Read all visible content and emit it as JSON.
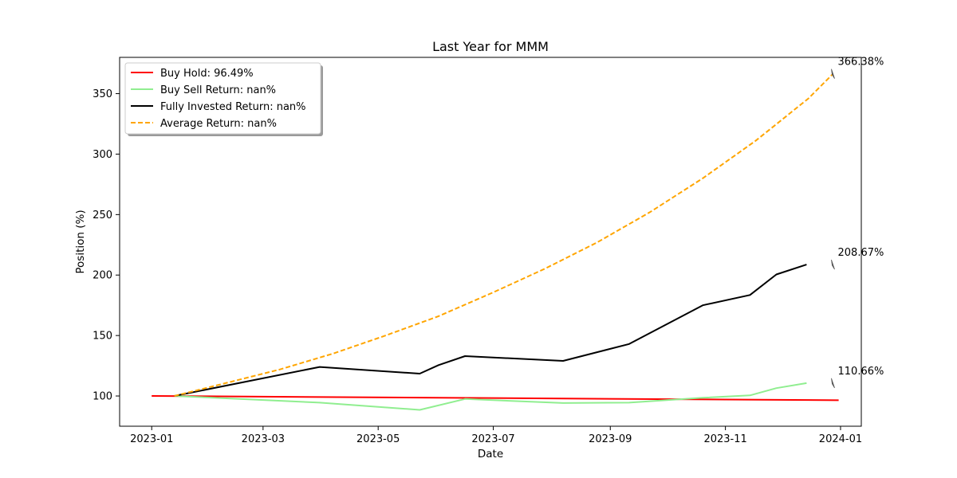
{
  "chart_data": {
    "type": "line",
    "title": "Last Year for MMM",
    "xlabel": "Date",
    "ylabel": "Position (%)",
    "xlim": [
      "2022-12-15",
      "2024-01-12"
    ],
    "ylim": [
      75,
      380
    ],
    "grid": false,
    "legend_position": "top-left",
    "x_ticks": [
      "2023-01",
      "2023-03",
      "2023-05",
      "2023-07",
      "2023-09",
      "2023-11",
      "2024-01"
    ],
    "y_ticks": [
      100,
      150,
      200,
      250,
      300,
      350
    ],
    "series": [
      {
        "name": "Buy Hold: 96.49%",
        "color": "#ff0000",
        "dash": "solid",
        "points": [
          {
            "x": "2023-01-01",
            "y": 100.0
          },
          {
            "x": "2023-12-31",
            "y": 96.49
          }
        ]
      },
      {
        "name": "Buy Sell Return: nan%",
        "color": "#90ee90",
        "dash": "solid",
        "points": [
          {
            "x": "2023-01-13",
            "y": 100.0
          },
          {
            "x": "2023-03-31",
            "y": 94.5
          },
          {
            "x": "2023-05-23",
            "y": 88.5
          },
          {
            "x": "2023-06-16",
            "y": 97.5
          },
          {
            "x": "2023-08-07",
            "y": 94.2
          },
          {
            "x": "2023-09-11",
            "y": 94.5
          },
          {
            "x": "2023-10-20",
            "y": 98.5
          },
          {
            "x": "2023-11-14",
            "y": 100.5
          },
          {
            "x": "2023-11-28",
            "y": 106.5
          },
          {
            "x": "2023-12-14",
            "y": 110.66
          }
        ]
      },
      {
        "name": "Fully Invested Return: nan%",
        "color": "#000000",
        "dash": "solid",
        "points": [
          {
            "x": "2023-01-13",
            "y": 100.0
          },
          {
            "x": "2023-03-31",
            "y": 124.0
          },
          {
            "x": "2023-05-23",
            "y": 118.5
          },
          {
            "x": "2023-06-02",
            "y": 125.5
          },
          {
            "x": "2023-06-16",
            "y": 133.0
          },
          {
            "x": "2023-08-07",
            "y": 129.0
          },
          {
            "x": "2023-09-11",
            "y": 143.0
          },
          {
            "x": "2023-10-20",
            "y": 175.0
          },
          {
            "x": "2023-11-14",
            "y": 183.5
          },
          {
            "x": "2023-11-28",
            "y": 200.5
          },
          {
            "x": "2023-12-14",
            "y": 208.67
          }
        ]
      },
      {
        "name": "Average Return: nan%",
        "color": "#ffa500",
        "dash": "dashed",
        "points": [
          {
            "x": "2023-01-13",
            "y": 100.0
          },
          {
            "x": "2023-02-10",
            "y": 111.0
          },
          {
            "x": "2023-03-10",
            "y": 122.0
          },
          {
            "x": "2023-04-07",
            "y": 135.0
          },
          {
            "x": "2023-05-05",
            "y": 150.0
          },
          {
            "x": "2023-06-02",
            "y": 166.0
          },
          {
            "x": "2023-06-30",
            "y": 185.0
          },
          {
            "x": "2023-07-28",
            "y": 205.0
          },
          {
            "x": "2023-08-25",
            "y": 227.0
          },
          {
            "x": "2023-09-22",
            "y": 252.0
          },
          {
            "x": "2023-10-20",
            "y": 280.0
          },
          {
            "x": "2023-11-17",
            "y": 311.0
          },
          {
            "x": "2023-12-15",
            "y": 346.0
          },
          {
            "x": "2023-12-28",
            "y": 366.38
          }
        ]
      }
    ],
    "annotations": [
      {
        "text": "366.38%",
        "x": "2023-12-28",
        "y": 366.38
      },
      {
        "text": "208.67%",
        "x": "2023-12-28",
        "y": 208.67
      },
      {
        "text": "110.66%",
        "x": "2023-12-28",
        "y": 110.66
      }
    ]
  }
}
